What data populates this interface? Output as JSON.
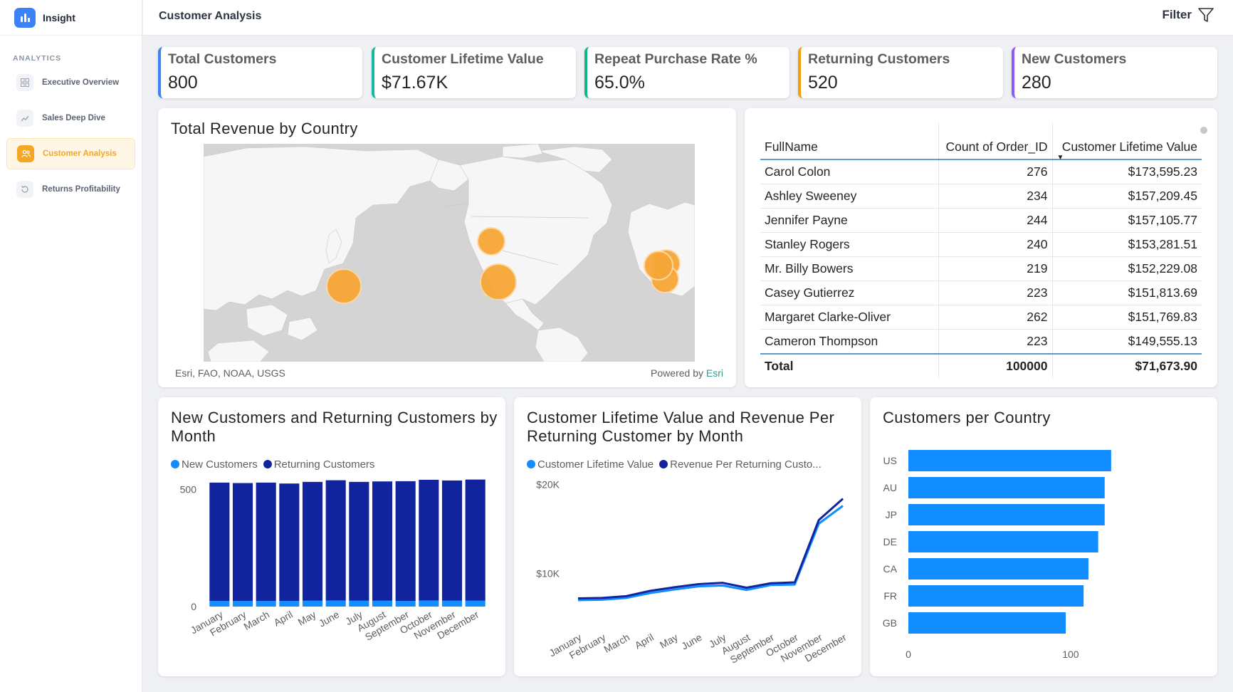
{
  "app": {
    "name": "Insight"
  },
  "sidebar": {
    "section": "ANALYTICS",
    "items": [
      {
        "label": "Executive Overview",
        "icon": "grid-icon"
      },
      {
        "label": "Sales Deep Dive",
        "icon": "trend-icon"
      },
      {
        "label": "Customer Analysis",
        "icon": "users-icon"
      },
      {
        "label": "Returns Profitability",
        "icon": "refresh-icon"
      }
    ]
  },
  "header": {
    "title": "Customer Analysis",
    "filter_label": "Filter"
  },
  "kpis": [
    {
      "label": "Total Customers",
      "value": "800",
      "color": "#3b82f6"
    },
    {
      "label": "Customer Lifetime Value",
      "value": "$71.67K",
      "color": "#14b8a6"
    },
    {
      "label": "Repeat Purchase Rate %",
      "value": "65.0%",
      "color": "#10b981"
    },
    {
      "label": "Returning Customers",
      "value": "520",
      "color": "#f59e0b"
    },
    {
      "label": "New Customers",
      "value": "280",
      "color": "#8b5cf6"
    }
  ],
  "map": {
    "title": "Total Revenue by Country",
    "attribution": "Esri, FAO, NOAA, USGS",
    "powered_prefix": "Powered by ",
    "powered_brand": "Esri"
  },
  "table": {
    "columns": [
      "FullName",
      "Count of Order_ID",
      "Customer Lifetime Value"
    ],
    "rows": [
      [
        "Carol Colon",
        "276",
        "$173,595.23"
      ],
      [
        "Ashley Sweeney",
        "234",
        "$157,209.45"
      ],
      [
        "Jennifer Payne",
        "244",
        "$157,105.77"
      ],
      [
        "Stanley Rogers",
        "240",
        "$153,281.51"
      ],
      [
        "Mr. Billy Bowers",
        "219",
        "$152,229.08"
      ],
      [
        "Casey Gutierrez",
        "223",
        "$151,813.69"
      ],
      [
        "Margaret Clarke-Oliver",
        "262",
        "$151,769.83"
      ],
      [
        "Cameron Thompson",
        "223",
        "$149,555.13"
      ]
    ],
    "total": [
      "Total",
      "100000",
      "$71,673.90"
    ]
  },
  "chart_data": [
    {
      "type": "bar",
      "stacked": true,
      "title": "New Customers and Returning Customers by Month",
      "categories": [
        "January",
        "February",
        "March",
        "April",
        "May",
        "June",
        "July",
        "August",
        "September",
        "October",
        "November",
        "December"
      ],
      "series": [
        {
          "name": "New Customers",
          "color": "#118dff",
          "values": [
            24,
            24,
            24,
            24,
            25,
            26,
            25,
            25,
            24,
            26,
            25,
            25
          ]
        },
        {
          "name": "Returning Customers",
          "color": "#12239e",
          "values": [
            506,
            504,
            506,
            502,
            508,
            514,
            508,
            510,
            512,
            516,
            514,
            518
          ]
        }
      ],
      "yticks": [
        "0",
        "500"
      ],
      "ylim": [
        0,
        560
      ],
      "legend": "top-left"
    },
    {
      "type": "line",
      "title": "Customer Lifetime Value and Revenue Per Returning Customer by Month",
      "categories": [
        "January",
        "February",
        "March",
        "April",
        "May",
        "June",
        "July",
        "August",
        "September",
        "October",
        "November",
        "December"
      ],
      "series": [
        {
          "name": "Customer Lifetime Value",
          "legend_label": "Customer Lifetime Value",
          "color": "#118dff",
          "values": [
            7000,
            7050,
            7250,
            7800,
            8200,
            8550,
            8650,
            8150,
            8700,
            8750,
            15600,
            17600
          ]
        },
        {
          "name": "Revenue Per Returning Customer",
          "legend_label": "Revenue Per Returning Custo...",
          "color": "#12239e",
          "values": [
            7200,
            7250,
            7450,
            8050,
            8450,
            8800,
            8950,
            8400,
            8900,
            9000,
            16000,
            18400
          ]
        }
      ],
      "yticks": [
        "$10K",
        "$20K"
      ],
      "ylim": [
        5000,
        21000
      ],
      "legend": "top-left"
    },
    {
      "type": "bar",
      "orientation": "horizontal",
      "title": "Customers per Country",
      "categories": [
        "US",
        "AU",
        "JP",
        "DE",
        "CA",
        "FR",
        "GB"
      ],
      "values": [
        125,
        121,
        121,
        117,
        111,
        108,
        97
      ],
      "color": "#118dff",
      "xticks": [
        "0",
        "100"
      ],
      "xlim": [
        0,
        165
      ]
    }
  ]
}
